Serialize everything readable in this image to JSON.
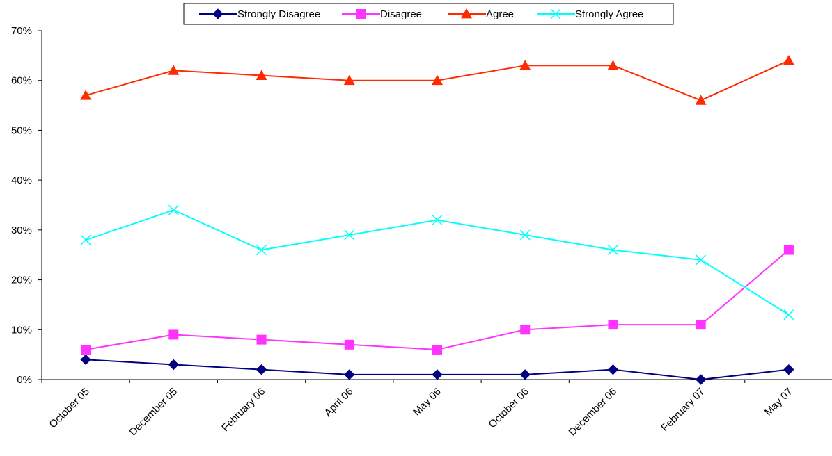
{
  "chart_data": {
    "type": "line",
    "categories": [
      "October 05",
      "December 05",
      "February 06",
      "April 06",
      "May 06",
      "October 06",
      "December 06",
      "February 07",
      "May 07"
    ],
    "ylim": [
      0,
      70
    ],
    "y_ticks": [
      0,
      10,
      20,
      30,
      40,
      50,
      60,
      70
    ],
    "y_tick_format": "%",
    "grid": false,
    "legend_position": "top-center",
    "series": [
      {
        "name": "Strongly Disagree",
        "color": "#000080",
        "marker": "diamond",
        "values": [
          4,
          3,
          2,
          1,
          1,
          1,
          2,
          0,
          2
        ]
      },
      {
        "name": "Disagree",
        "color": "#ff33ff",
        "marker": "square",
        "values": [
          6,
          9,
          8,
          7,
          6,
          10,
          11,
          11,
          26
        ]
      },
      {
        "name": "Agree",
        "color": "#ff2a00",
        "marker": "triangle",
        "values": [
          57,
          62,
          61,
          60,
          60,
          63,
          63,
          56,
          64
        ]
      },
      {
        "name": "Strongly Agree",
        "color": "#00ffff",
        "marker": "x",
        "values": [
          28,
          34,
          26,
          29,
          32,
          29,
          26,
          24,
          13
        ]
      }
    ]
  }
}
